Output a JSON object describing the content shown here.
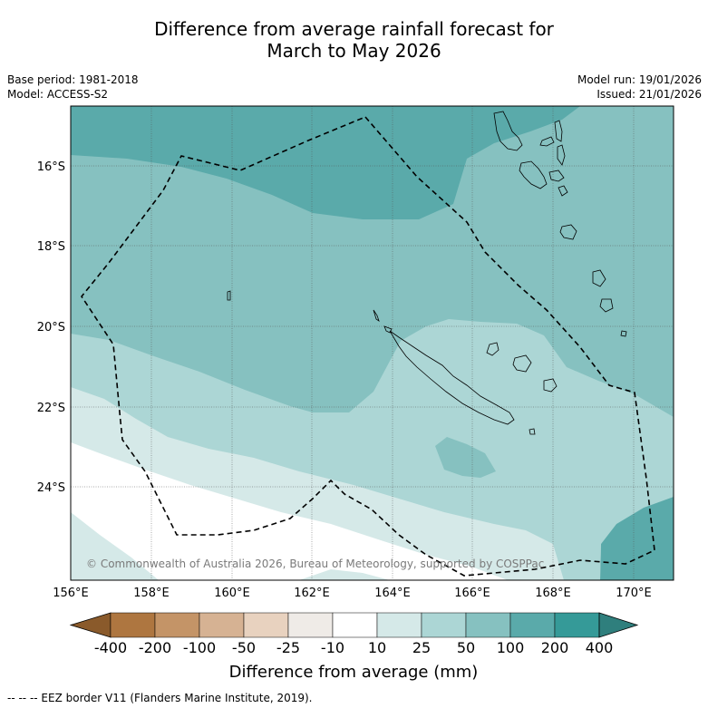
{
  "title_line1": "Difference from average rainfall forecast for",
  "title_line2": "March to May 2026",
  "meta": {
    "base_period": "Base period: 1981-2018",
    "model": "Model: ACCESS-S2",
    "model_run": "Model run: 19/01/2026",
    "issued": "Issued: 21/01/2026"
  },
  "map": {
    "longitude_labels": [
      "156°E",
      "158°E",
      "160°E",
      "162°E",
      "164°E",
      "166°E",
      "168°E",
      "170°E"
    ],
    "latitude_labels": [
      "16°S",
      "18°S",
      "20°S",
      "22°S",
      "24°S"
    ],
    "copyright": "© Commonwealth of Australia 2026, Bureau of Meteorology, supported by COSPPac"
  },
  "colorbar": {
    "title": "Difference from average (mm)",
    "ticks": [
      "-400",
      "-200",
      "-100",
      "-50",
      "-25",
      "-10",
      "10",
      "25",
      "50",
      "100",
      "200",
      "400"
    ],
    "colors": [
      "#8a5a2b",
      "#ae7640",
      "#c49467",
      "#d6b293",
      "#e8d2bf",
      "#efebe7",
      "#ffffff",
      "#d5e9e8",
      "#acd6d5",
      "#86c1c0",
      "#5aaaaa",
      "#359a98",
      "#2f7f7d"
    ]
  },
  "legend_note": "--  --  -- EEZ border V11 (Flanders Marine Institute, 2019)."
}
